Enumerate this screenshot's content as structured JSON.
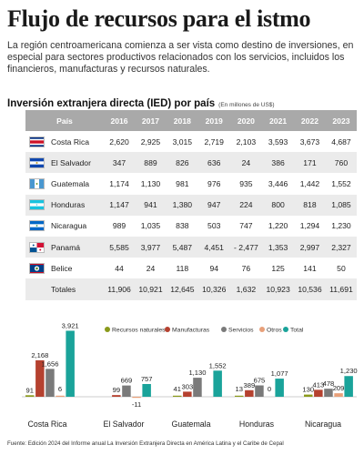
{
  "title": "Flujo de recursos para el istmo",
  "intro": "La región centroamericana comienza a ser vista como destino de inversiones, en especial para sectores productivos relacionados con los servicios, incluidos los financieros, manufacturas y recursos naturales.",
  "table": {
    "title": "Inversión extranjera directa (IED) por país",
    "unit": "(En millones de US$)",
    "headers": [
      "País",
      "2016",
      "2017",
      "2018",
      "2019",
      "2020",
      "2021",
      "2022",
      "2023"
    ],
    "rows": [
      {
        "country": "Costa Rica",
        "flag": "costa-rica",
        "values": [
          "2,620",
          "2,925",
          "3,015",
          "2,719",
          "2,103",
          "3,593",
          "3,673",
          "4,687"
        ]
      },
      {
        "country": "El Salvador",
        "flag": "el-salvador",
        "values": [
          "347",
          "889",
          "826",
          "636",
          "24",
          "386",
          "171",
          "760"
        ]
      },
      {
        "country": "Guatemala",
        "flag": "guatemala",
        "values": [
          "1,174",
          "1,130",
          "981",
          "976",
          "935",
          "3,446",
          "1,442",
          "1,552"
        ]
      },
      {
        "country": "Honduras",
        "flag": "honduras",
        "values": [
          "1,147",
          "941",
          "1,380",
          "947",
          "224",
          "800",
          "818",
          "1,085"
        ]
      },
      {
        "country": "Nicaragua",
        "flag": "nicaragua",
        "values": [
          "989",
          "1,035",
          "838",
          "503",
          "747",
          "1,220",
          "1,294",
          "1,230"
        ]
      },
      {
        "country": "Panamá",
        "flag": "panama",
        "values": [
          "5,585",
          "3,977",
          "5,487",
          "4,451",
          "- 2,477",
          "1,353",
          "2,997",
          "2,327"
        ]
      },
      {
        "country": "Belice",
        "flag": "belice",
        "values": [
          "44",
          "24",
          "118",
          "94",
          "76",
          "125",
          "141",
          "50"
        ]
      }
    ],
    "totals": {
      "label": "Totales",
      "values": [
        "11,906",
        "10,921",
        "12,645",
        "10,326",
        "1,632",
        "10,923",
        "10,536",
        "11,691"
      ]
    }
  },
  "chart_data": {
    "type": "bar",
    "categories": [
      "Costa Rica",
      "El Salvador",
      "Guatemala",
      "Honduras",
      "Nicaragua"
    ],
    "series": [
      {
        "name": "Recursos naturales",
        "color": "#8a9a1b",
        "values": [
          91,
          null,
          41,
          13,
          130
        ]
      },
      {
        "name": "Manufacturas",
        "color": "#b5412f",
        "values": [
          2168,
          99,
          303,
          389,
          413
        ]
      },
      {
        "name": "Servicios",
        "color": "#7a7a7a",
        "values": [
          1656,
          669,
          1130,
          675,
          478
        ]
      },
      {
        "name": "Otros",
        "color": "#e8a07a",
        "values": [
          6,
          -11,
          null,
          0,
          209
        ]
      },
      {
        "name": "Total",
        "color": "#1aa39a",
        "values": [
          3921,
          757,
          1552,
          1077,
          1230
        ]
      }
    ],
    "value_labels": [
      [
        "91",
        "2,168",
        "1,656",
        "6",
        "3,921"
      ],
      [
        "",
        "99",
        "669",
        "-11",
        "757"
      ],
      [
        "41",
        "303",
        "1,130",
        "",
        "1,552"
      ],
      [
        "13",
        "389",
        "675",
        "0",
        "1,077"
      ],
      [
        "130",
        "413",
        "478",
        "209",
        "1,230"
      ]
    ],
    "legend_position": "top-right",
    "ylim": [
      -100,
      4000
    ],
    "grid": false
  },
  "source": "Fuente: Edición 2024 del Informe anual La Inversión Extranjera Directa en América Latina y el Caribe de Cepal"
}
